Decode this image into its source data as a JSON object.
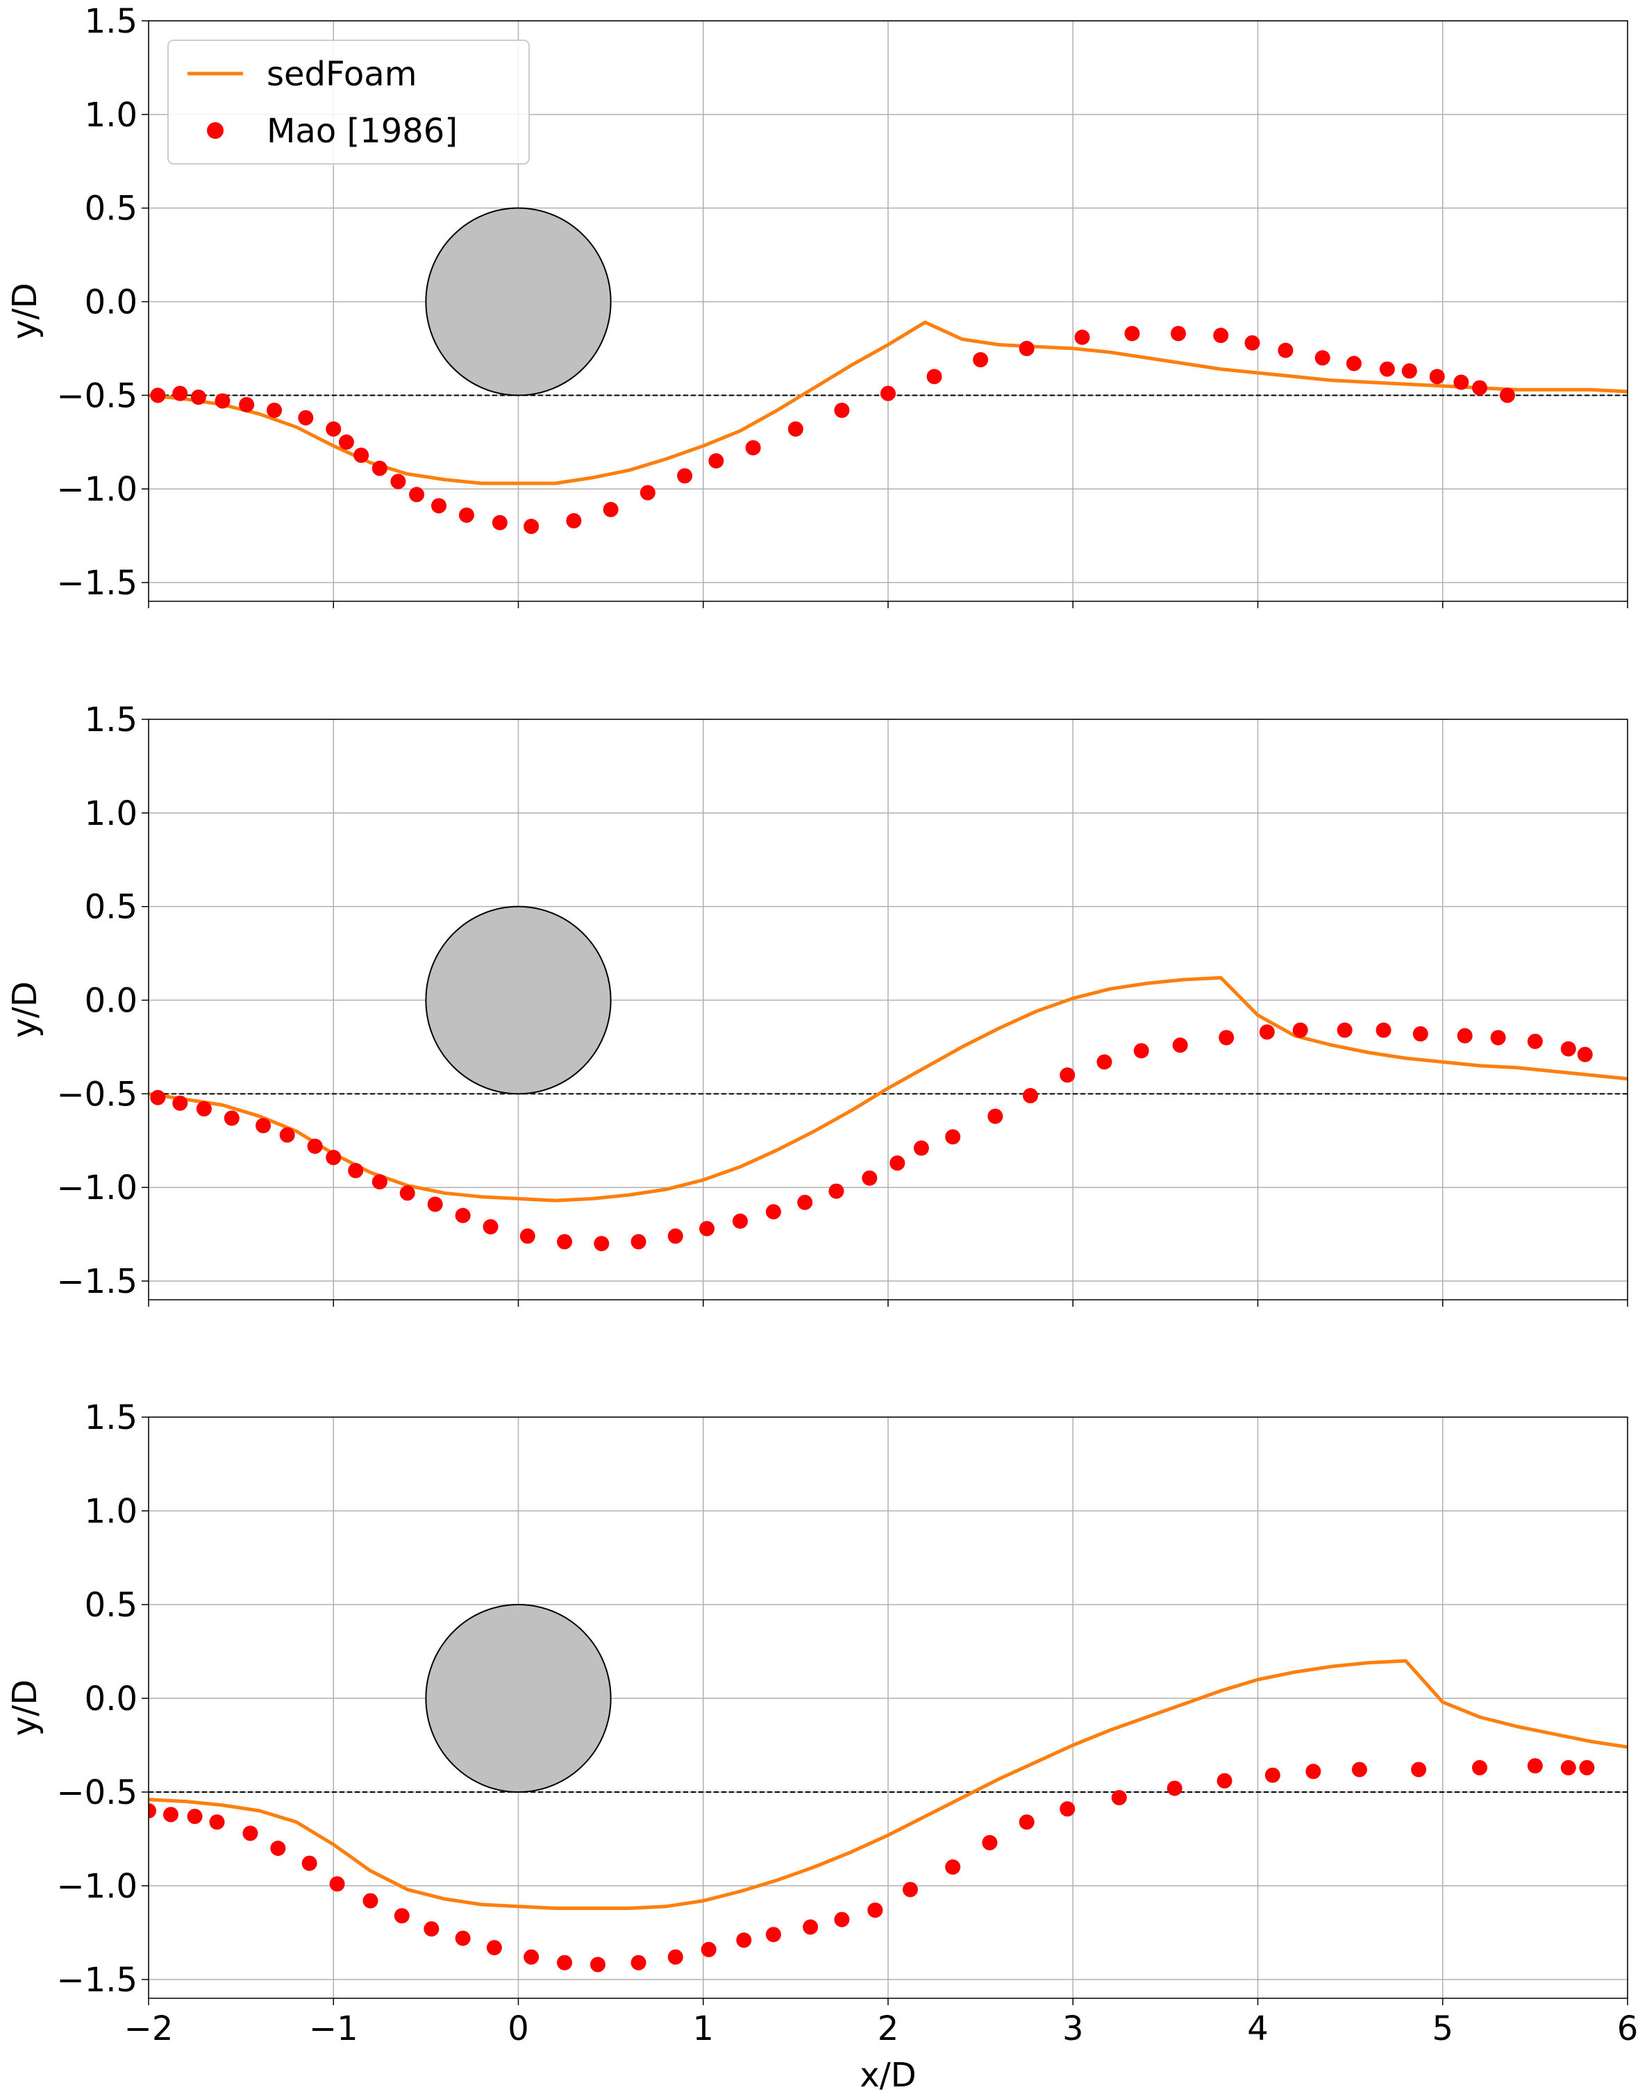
{
  "colors": {
    "sedfoam": "#ff7f0e",
    "mao": "#ff0000",
    "cylinder_fill": "#c0c0c0",
    "grid": "#b0b0b0",
    "reference_line": "#000000"
  },
  "chart_data": [
    {
      "type": "line",
      "panel": "top",
      "xlabel": "",
      "ylabel": "y/D",
      "xlim": [
        -2,
        6
      ],
      "ylim": [
        -1.6,
        1.5
      ],
      "xticks": [
        -2,
        -1,
        0,
        1,
        2,
        3,
        4,
        5,
        6
      ],
      "yticks": [
        -1.5,
        -1.0,
        -0.5,
        0.0,
        0.5,
        1.0,
        1.5
      ],
      "grid": true,
      "show_xtick_labels": false,
      "legend": {
        "placement": "top-left",
        "entries": [
          {
            "label": "sedFoam",
            "marker": "line",
            "series": "sedFoam"
          },
          {
            "label": "Mao [1986]",
            "marker": "circle",
            "series": "Mao [1986]"
          }
        ]
      },
      "cylinder": {
        "cx": 0,
        "cy": 0,
        "r": 0.5
      },
      "reference_y": -0.5,
      "series": [
        {
          "name": "sedFoam",
          "kind": "line",
          "x": [
            -2.0,
            -1.8,
            -1.6,
            -1.4,
            -1.2,
            -1.0,
            -0.8,
            -0.6,
            -0.4,
            -0.2,
            0.0,
            0.2,
            0.4,
            0.6,
            0.8,
            1.0,
            1.2,
            1.4,
            1.6,
            1.8,
            2.0,
            2.2,
            2.4,
            2.6,
            2.8,
            3.0,
            3.2,
            3.4,
            3.6,
            3.8,
            4.0,
            4.2,
            4.4,
            4.6,
            4.8,
            5.0,
            5.2,
            5.4,
            5.6,
            5.8,
            6.0
          ],
          "y": [
            -0.5,
            -0.52,
            -0.55,
            -0.6,
            -0.67,
            -0.77,
            -0.86,
            -0.92,
            -0.95,
            -0.97,
            -0.97,
            -0.97,
            -0.94,
            -0.9,
            -0.84,
            -0.77,
            -0.69,
            -0.58,
            -0.46,
            -0.34,
            -0.23,
            -0.11,
            -0.2,
            -0.23,
            -0.24,
            -0.25,
            -0.27,
            -0.3,
            -0.33,
            -0.36,
            -0.38,
            -0.4,
            -0.42,
            -0.43,
            -0.44,
            -0.45,
            -0.46,
            -0.47,
            -0.47,
            -0.47,
            -0.48
          ]
        },
        {
          "name": "Mao [1986]",
          "kind": "scatter",
          "x": [
            -1.95,
            -1.83,
            -1.73,
            -1.6,
            -1.47,
            -1.32,
            -1.15,
            -1.0,
            -0.93,
            -0.85,
            -0.75,
            -0.65,
            -0.55,
            -0.43,
            -0.28,
            -0.1,
            0.07,
            0.3,
            0.5,
            0.7,
            0.9,
            1.07,
            1.27,
            1.5,
            1.75,
            2.0,
            2.25,
            2.5,
            2.75,
            3.05,
            3.32,
            3.57,
            3.8,
            3.97,
            4.15,
            4.35,
            4.52,
            4.7,
            4.82,
            4.97,
            5.1,
            5.2,
            5.35
          ],
          "y": [
            -0.5,
            -0.49,
            -0.51,
            -0.53,
            -0.55,
            -0.58,
            -0.62,
            -0.68,
            -0.75,
            -0.82,
            -0.89,
            -0.96,
            -1.03,
            -1.09,
            -1.14,
            -1.18,
            -1.2,
            -1.17,
            -1.11,
            -1.02,
            -0.93,
            -0.85,
            -0.78,
            -0.68,
            -0.58,
            -0.49,
            -0.4,
            -0.31,
            -0.25,
            -0.19,
            -0.17,
            -0.17,
            -0.18,
            -0.22,
            -0.26,
            -0.3,
            -0.33,
            -0.36,
            -0.37,
            -0.4,
            -0.43,
            -0.46,
            -0.5
          ]
        }
      ]
    },
    {
      "type": "line",
      "panel": "middle",
      "xlabel": "",
      "ylabel": "y/D",
      "xlim": [
        -2,
        6
      ],
      "ylim": [
        -1.6,
        1.5
      ],
      "xticks": [
        -2,
        -1,
        0,
        1,
        2,
        3,
        4,
        5,
        6
      ],
      "yticks": [
        -1.5,
        -1.0,
        -0.5,
        0.0,
        0.5,
        1.0,
        1.5
      ],
      "grid": true,
      "show_xtick_labels": false,
      "cylinder": {
        "cx": 0,
        "cy": 0,
        "r": 0.5
      },
      "reference_y": -0.5,
      "series": [
        {
          "name": "sedFoam",
          "kind": "line",
          "x": [
            -2.0,
            -1.8,
            -1.6,
            -1.4,
            -1.2,
            -1.0,
            -0.8,
            -0.6,
            -0.4,
            -0.2,
            0.0,
            0.2,
            0.4,
            0.6,
            0.8,
            1.0,
            1.2,
            1.4,
            1.6,
            1.8,
            2.0,
            2.2,
            2.4,
            2.6,
            2.8,
            3.0,
            3.2,
            3.4,
            3.6,
            3.8,
            4.0,
            4.2,
            4.4,
            4.6,
            4.8,
            5.0,
            5.2,
            5.4,
            5.6,
            5.8,
            6.0
          ],
          "y": [
            -0.5,
            -0.53,
            -0.56,
            -0.62,
            -0.7,
            -0.82,
            -0.92,
            -0.99,
            -1.03,
            -1.05,
            -1.06,
            -1.07,
            -1.06,
            -1.04,
            -1.01,
            -0.96,
            -0.89,
            -0.8,
            -0.7,
            -0.59,
            -0.47,
            -0.36,
            -0.25,
            -0.15,
            -0.06,
            0.01,
            0.06,
            0.09,
            0.11,
            0.12,
            -0.08,
            -0.19,
            -0.24,
            -0.28,
            -0.31,
            -0.33,
            -0.35,
            -0.36,
            -0.38,
            -0.4,
            -0.42
          ]
        },
        {
          "name": "Mao [1986]",
          "kind": "scatter",
          "x": [
            -1.95,
            -1.83,
            -1.7,
            -1.55,
            -1.38,
            -1.25,
            -1.1,
            -1.0,
            -0.88,
            -0.75,
            -0.6,
            -0.45,
            -0.3,
            -0.15,
            0.05,
            0.25,
            0.45,
            0.65,
            0.85,
            1.02,
            1.2,
            1.38,
            1.55,
            1.72,
            1.9,
            2.05,
            2.18,
            2.35,
            2.58,
            2.77,
            2.97,
            3.17,
            3.37,
            3.58,
            3.83,
            4.05,
            4.23,
            4.47,
            4.68,
            4.88,
            5.12,
            5.3,
            5.5,
            5.68,
            5.77
          ],
          "y": [
            -0.52,
            -0.55,
            -0.58,
            -0.63,
            -0.67,
            -0.72,
            -0.78,
            -0.84,
            -0.91,
            -0.97,
            -1.03,
            -1.09,
            -1.15,
            -1.21,
            -1.26,
            -1.29,
            -1.3,
            -1.29,
            -1.26,
            -1.22,
            -1.18,
            -1.13,
            -1.08,
            -1.02,
            -0.95,
            -0.87,
            -0.79,
            -0.73,
            -0.62,
            -0.51,
            -0.4,
            -0.33,
            -0.27,
            -0.24,
            -0.2,
            -0.17,
            -0.16,
            -0.16,
            -0.16,
            -0.18,
            -0.19,
            -0.2,
            -0.22,
            -0.26,
            -0.29
          ]
        }
      ]
    },
    {
      "type": "line",
      "panel": "bottom",
      "xlabel": "x/D",
      "ylabel": "y/D",
      "xlim": [
        -2,
        6
      ],
      "ylim": [
        -1.6,
        1.5
      ],
      "xticks": [
        -2,
        -1,
        0,
        1,
        2,
        3,
        4,
        5,
        6
      ],
      "xtick_labels": [
        "−2",
        "−1",
        "0",
        "1",
        "2",
        "3",
        "4",
        "5",
        "6"
      ],
      "yticks": [
        -1.5,
        -1.0,
        -0.5,
        0.0,
        0.5,
        1.0,
        1.5
      ],
      "grid": true,
      "show_xtick_labels": true,
      "cylinder": {
        "cx": 0,
        "cy": 0,
        "r": 0.5
      },
      "reference_y": -0.5,
      "series": [
        {
          "name": "sedFoam",
          "kind": "line",
          "x": [
            -2.0,
            -1.8,
            -1.6,
            -1.4,
            -1.2,
            -1.0,
            -0.8,
            -0.6,
            -0.4,
            -0.2,
            0.0,
            0.2,
            0.4,
            0.6,
            0.8,
            1.0,
            1.2,
            1.4,
            1.6,
            1.8,
            2.0,
            2.2,
            2.4,
            2.6,
            2.8,
            3.0,
            3.2,
            3.4,
            3.6,
            3.8,
            4.0,
            4.2,
            4.4,
            4.6,
            4.8,
            5.0,
            5.2,
            5.4,
            5.6,
            5.8,
            6.0
          ],
          "y": [
            -0.54,
            -0.55,
            -0.57,
            -0.6,
            -0.66,
            -0.78,
            -0.92,
            -1.02,
            -1.07,
            -1.1,
            -1.11,
            -1.12,
            -1.12,
            -1.12,
            -1.11,
            -1.08,
            -1.03,
            -0.97,
            -0.9,
            -0.82,
            -0.73,
            -0.63,
            -0.53,
            -0.43,
            -0.34,
            -0.25,
            -0.17,
            -0.1,
            -0.03,
            0.04,
            0.1,
            0.14,
            0.17,
            0.19,
            0.2,
            -0.02,
            -0.1,
            -0.15,
            -0.19,
            -0.23,
            -0.26
          ]
        },
        {
          "name": "Mao [1986]",
          "kind": "scatter",
          "x": [
            -2.0,
            -1.88,
            -1.75,
            -1.63,
            -1.45,
            -1.3,
            -1.13,
            -0.98,
            -0.8,
            -0.63,
            -0.47,
            -0.3,
            -0.13,
            0.07,
            0.25,
            0.43,
            0.65,
            0.85,
            1.03,
            1.22,
            1.38,
            1.58,
            1.75,
            1.93,
            2.12,
            2.35,
            2.55,
            2.75,
            2.97,
            3.25,
            3.55,
            3.82,
            4.08,
            4.3,
            4.55,
            4.87,
            5.2,
            5.5,
            5.68,
            5.78
          ],
          "y": [
            -0.6,
            -0.62,
            -0.63,
            -0.66,
            -0.72,
            -0.8,
            -0.88,
            -0.99,
            -1.08,
            -1.16,
            -1.23,
            -1.28,
            -1.33,
            -1.38,
            -1.41,
            -1.42,
            -1.41,
            -1.38,
            -1.34,
            -1.29,
            -1.26,
            -1.22,
            -1.18,
            -1.13,
            -1.02,
            -0.9,
            -0.77,
            -0.66,
            -0.59,
            -0.53,
            -0.48,
            -0.44,
            -0.41,
            -0.39,
            -0.38,
            -0.38,
            -0.37,
            -0.36,
            -0.37,
            -0.37
          ]
        }
      ]
    }
  ]
}
